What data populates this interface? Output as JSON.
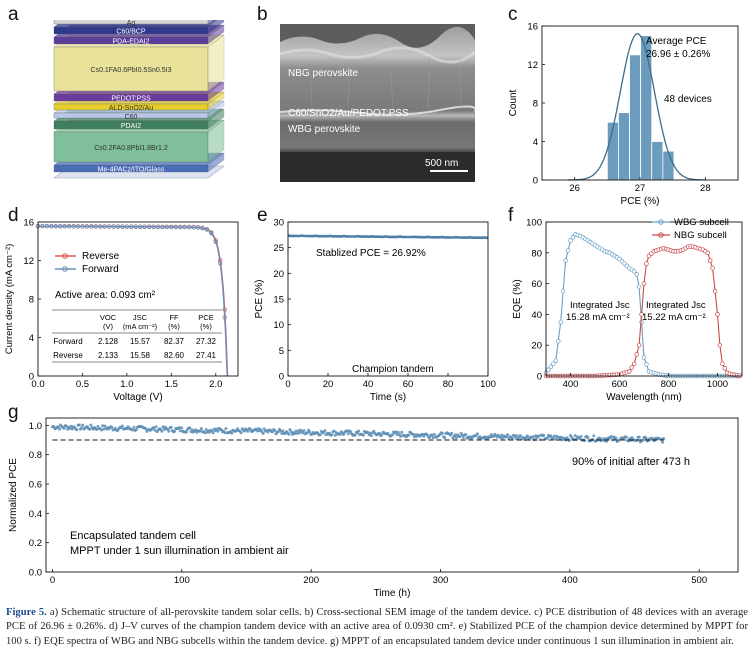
{
  "panel_letters": [
    "a",
    "b",
    "c",
    "d",
    "e",
    "f",
    "g"
  ],
  "panel_a": {
    "layers": [
      {
        "label": "Ag",
        "color": "#d4d4d8"
      },
      {
        "label": "C60/BCP",
        "color": "#2f3a8c"
      },
      {
        "label": "PDA-EDAI2",
        "color": "#5a3d9a"
      },
      {
        "label": "Cs0.1FA0.6PbI0.5Sn0.5I3",
        "color": "#e8e29a"
      },
      {
        "label": "PEDOT:PSS",
        "color": "#6a3c9e"
      },
      {
        "label": "ALD-SnO2/Au",
        "color": "#e6cf2c"
      },
      {
        "label": "C60",
        "color": "#b9c7ea"
      },
      {
        "label": "PDAI2",
        "color": "#3f7f5e"
      },
      {
        "label": "Cs0.2FA0.8PbI1.8Br1.2",
        "color": "#7fbf9a"
      },
      {
        "label": "Me-4PACz/ITO/Glass",
        "color": "#4a6db8"
      }
    ]
  },
  "panel_b": {
    "labels": [
      "NBG perovskite",
      "C60/SnO2/Au/PEDOT:PSS",
      "WBG perovskite"
    ],
    "scalebar": "500 nm"
  },
  "panel_c": {
    "annotation_line1": "Average PCE",
    "annotation_line2": "26.96 ± 0.26%",
    "annotation_devices": "48 devices",
    "chart_data": {
      "type": "bar",
      "xlabel": "PCE (%)",
      "ylabel": "Count",
      "xlim": [
        25.5,
        28.5
      ],
      "ylim": [
        0,
        16
      ],
      "xticks": [
        26,
        27,
        28
      ],
      "yticks": [
        0,
        4,
        8,
        12,
        16
      ],
      "bin_edges": [
        26.5,
        26.67,
        26.84,
        27.01,
        27.18,
        27.35,
        27.52
      ],
      "values": [
        6,
        7,
        13,
        15,
        4,
        3
      ],
      "fit": {
        "type": "gaussian",
        "mean": 26.96,
        "sigma": 0.26
      }
    }
  },
  "panel_d": {
    "active_area": "Active area: 0.093 cm²",
    "table": {
      "headers": [
        "",
        "VOC (V)",
        "JSC (mA cm⁻²)",
        "FF (%)",
        "PCE (%)"
      ],
      "rows": [
        [
          "Forward",
          "2.128",
          "15.57",
          "82.37",
          "27.32"
        ],
        [
          "Reverse",
          "2.133",
          "15.58",
          "82.60",
          "27.41"
        ]
      ]
    },
    "chart_data": {
      "type": "line",
      "xlabel": "Voltage (V)",
      "ylabel": "Current density (mA cm⁻²)",
      "xlim": [
        0,
        2.25
      ],
      "ylim": [
        0,
        16
      ],
      "xticks": [
        0.0,
        0.5,
        1.0,
        1.5,
        2.0
      ],
      "yticks": [
        0,
        4,
        8,
        12,
        16
      ],
      "series": [
        {
          "name": "Reverse",
          "color": "#e0595a",
          "jsc": 15.58,
          "voc": 2.133
        },
        {
          "name": "Forward",
          "color": "#6b8fb8",
          "jsc": 15.57,
          "voc": 2.128
        }
      ]
    }
  },
  "panel_e": {
    "annotation": "Stablized PCE = 26.92%",
    "label": "Champion tandem",
    "chart_data": {
      "type": "line",
      "xlabel": "Time (s)",
      "ylabel": "PCE (%)",
      "xlim": [
        0,
        100
      ],
      "ylim": [
        0,
        30
      ],
      "xticks": [
        0,
        20,
        40,
        60,
        80,
        100
      ],
      "yticks": [
        0,
        5,
        10,
        15,
        20,
        25,
        30
      ],
      "series": [
        {
          "name": "",
          "color": "#4f7fa6",
          "start": 27.3,
          "end": 26.92
        }
      ]
    }
  },
  "panel_f": {
    "annotation_wbg": [
      "Integrated Jsc",
      "15.28 mA cm⁻²"
    ],
    "annotation_nbg": [
      "Integrated Jsc",
      "15.22 mA cm⁻²"
    ],
    "chart_data": {
      "type": "line",
      "xlabel": "Wavelength (nm)",
      "ylabel": "EQE (%)",
      "xlim": [
        300,
        1100
      ],
      "ylim": [
        0,
        100
      ],
      "xticks": [
        400,
        600,
        800,
        1000
      ],
      "yticks": [
        0,
        20,
        40,
        60,
        80,
        100
      ],
      "series": [
        {
          "name": "WBG subcell",
          "color": "#6aa0c8",
          "x": [
            300,
            340,
            360,
            380,
            400,
            420,
            440,
            460,
            480,
            500,
            520,
            540,
            560,
            580,
            600,
            620,
            640,
            660,
            670,
            680,
            690,
            700,
            720,
            760,
            800,
            900,
            1000,
            1100
          ],
          "y": [
            2,
            10,
            35,
            75,
            88,
            92,
            91,
            89,
            87,
            85,
            83,
            81,
            80,
            78,
            76,
            73,
            70,
            68,
            66,
            58,
            35,
            12,
            3,
            1,
            0,
            0,
            0,
            0
          ]
        },
        {
          "name": "NBG subcell",
          "color": "#c94a4a",
          "x": [
            300,
            400,
            500,
            600,
            640,
            660,
            680,
            690,
            700,
            710,
            720,
            740,
            760,
            780,
            800,
            820,
            840,
            860,
            880,
            900,
            920,
            940,
            960,
            980,
            990,
            1000,
            1010,
            1020,
            1040,
            1060,
            1100
          ],
          "y": [
            0,
            0,
            0,
            1,
            3,
            8,
            20,
            40,
            60,
            73,
            78,
            81,
            82,
            83,
            82,
            81,
            81,
            82,
            84,
            84,
            83,
            82,
            80,
            70,
            55,
            40,
            20,
            8,
            2,
            1,
            0
          ]
        }
      ]
    }
  },
  "panel_g": {
    "annotation_90": "90% of initial after 473 h",
    "note_line1": "Encapsulated tandem cell",
    "note_line2": "MPPT under 1 sun illumination in ambient air",
    "chart_data": {
      "type": "scatter",
      "xlabel": "Time (h)",
      "ylabel": "Normalized PCE",
      "xlim": [
        -5,
        530
      ],
      "ylim": [
        0,
        1.05
      ],
      "xticks": [
        0,
        100,
        200,
        300,
        400,
        500
      ],
      "yticks": [
        0.0,
        0.2,
        0.4,
        0.6,
        0.8,
        1.0
      ],
      "series": [
        {
          "name": "",
          "color": "#5b8db5",
          "t_start": 0,
          "t_end": 473,
          "pce_start": 0.99,
          "pce_end": 0.9
        }
      ],
      "reference_line": 0.9
    }
  },
  "caption": {
    "figure_label": "Figure 5.",
    "text": "a) Schematic structure of all-perovskite tandem solar cells. b) Cross-sectional SEM image of the tandem device. c) PCE distribution of 48 devices with an average PCE of 26.96 ± 0.26%. d) J–V curves of the champion tandem device with an active area of 0.0930 cm². e) Stabilized PCE of the champion device determined by MPPT for 100 s. f) EQE spectra of WBG and NBG subcells within the tandem device. g) MPPT of an encapsulated tandem device under continuous 1 sun illumination in ambient air."
  }
}
